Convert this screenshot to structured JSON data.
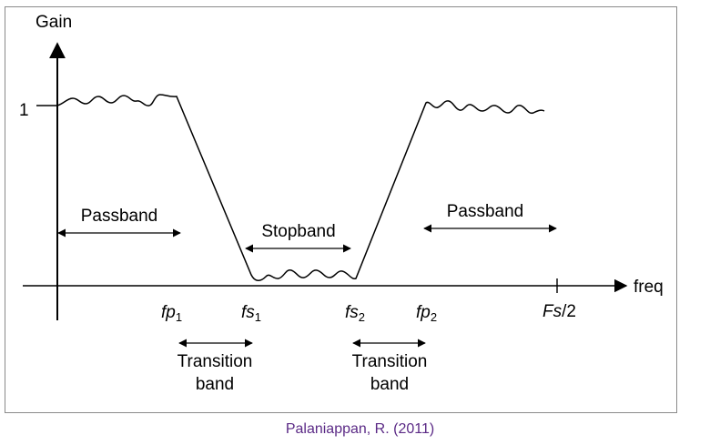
{
  "axes": {
    "y_label": "Gain",
    "x_label": "freq",
    "y_tick": "1"
  },
  "regions": {
    "passband_left": "Passband",
    "stopband": "Stopband",
    "passband_right": "Passband",
    "transition_left": [
      "Transition",
      "band"
    ],
    "transition_right": [
      "Transition",
      "band"
    ]
  },
  "ticks": {
    "fp1": {
      "base": "fp",
      "sub": "1"
    },
    "fs1": {
      "base": "fs",
      "sub": "1"
    },
    "fs2": {
      "base": "fs",
      "sub": "2"
    },
    "fp2": {
      "base": "fp",
      "sub": "2"
    },
    "nyquist": {
      "base": "Fs",
      "suffix": "/2"
    }
  },
  "caption": "Palaniappan, R. (2011)",
  "colors": {
    "caption": "#5b2a86",
    "frame": "#8a8a8a",
    "ink": "#000000"
  }
}
